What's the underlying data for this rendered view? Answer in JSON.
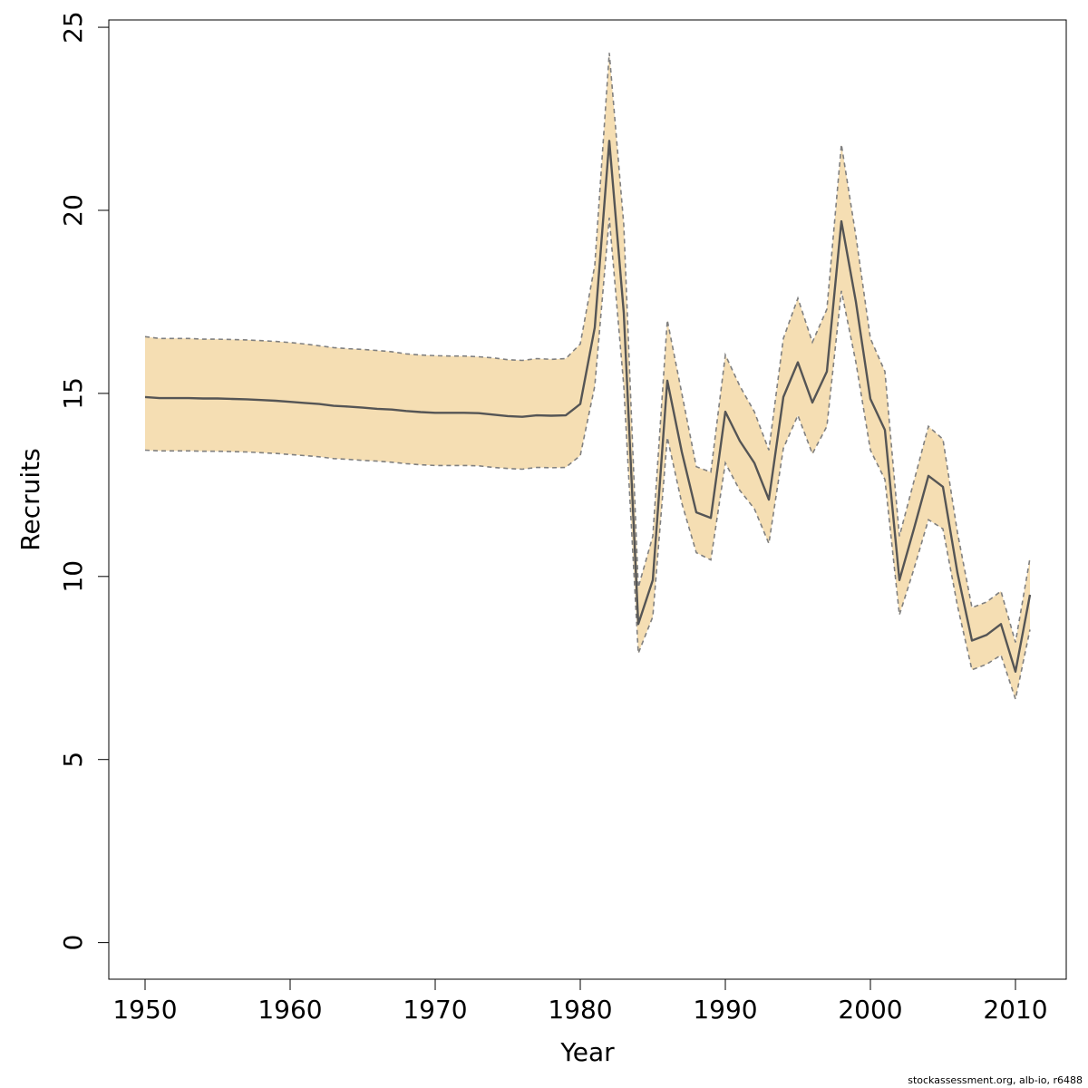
{
  "chart_data": {
    "type": "line",
    "title": "",
    "xlabel": "Year",
    "ylabel": "Recruits",
    "xlim": [
      1947.5,
      2013.5
    ],
    "ylim": [
      -1,
      25.2
    ],
    "x_ticks": [
      1950,
      1960,
      1970,
      1980,
      1990,
      2000,
      2010
    ],
    "y_ticks": [
      0,
      5,
      10,
      15,
      20,
      25
    ],
    "grid": false,
    "legend": "none",
    "colors": {
      "band": "#f5deb3",
      "line": "#555555",
      "bounds": "#808080"
    },
    "x": [
      1950,
      1951,
      1952,
      1953,
      1954,
      1955,
      1956,
      1957,
      1958,
      1959,
      1960,
      1961,
      1962,
      1963,
      1964,
      1965,
      1966,
      1967,
      1968,
      1969,
      1970,
      1971,
      1972,
      1973,
      1974,
      1975,
      1976,
      1977,
      1978,
      1979,
      1980,
      1981,
      1982,
      1983,
      1984,
      1985,
      1986,
      1987,
      1988,
      1989,
      1990,
      1991,
      1992,
      1993,
      1994,
      1995,
      1996,
      1997,
      1998,
      1999,
      2000,
      2001,
      2002,
      2003,
      2004,
      2005,
      2006,
      2007,
      2008,
      2009,
      2010,
      2011
    ],
    "series": [
      {
        "role": "estimate",
        "values": [
          14.9,
          14.87,
          14.87,
          14.87,
          14.86,
          14.86,
          14.85,
          14.84,
          14.82,
          14.8,
          14.77,
          14.74,
          14.71,
          14.66,
          14.64,
          14.61,
          14.58,
          14.56,
          14.52,
          14.49,
          14.47,
          14.47,
          14.47,
          14.46,
          14.42,
          14.38,
          14.36,
          14.4,
          14.39,
          14.4,
          14.71,
          16.8,
          21.9,
          17.2,
          8.7,
          9.9,
          15.35,
          13.4,
          11.75,
          11.6,
          14.5,
          13.7,
          13.1,
          12.1,
          14.9,
          15.85,
          14.75,
          15.6,
          19.7,
          17.5,
          14.85,
          14.0,
          9.9,
          11.3,
          12.75,
          12.45,
          10.1,
          8.25,
          8.4,
          8.7,
          7.4,
          9.5
        ]
      },
      {
        "role": "upper",
        "values": [
          16.55,
          16.5,
          16.5,
          16.5,
          16.48,
          16.48,
          16.47,
          16.46,
          16.44,
          16.42,
          16.39,
          16.35,
          16.3,
          16.25,
          16.22,
          16.2,
          16.17,
          16.14,
          16.08,
          16.05,
          16.03,
          16.02,
          16.02,
          16.0,
          15.97,
          15.92,
          15.9,
          15.95,
          15.93,
          15.95,
          16.35,
          18.5,
          24.3,
          19.6,
          9.7,
          11.1,
          17.0,
          15.0,
          13.0,
          12.85,
          16.05,
          15.2,
          14.5,
          13.45,
          16.5,
          17.6,
          16.4,
          17.3,
          21.8,
          19.3,
          16.5,
          15.6,
          11.1,
          12.6,
          14.1,
          13.75,
          11.2,
          9.15,
          9.3,
          9.6,
          8.2,
          10.5
        ]
      },
      {
        "role": "lower",
        "values": [
          13.45,
          13.43,
          13.43,
          13.43,
          13.42,
          13.42,
          13.41,
          13.4,
          13.38,
          13.36,
          13.33,
          13.3,
          13.27,
          13.22,
          13.2,
          13.17,
          13.15,
          13.12,
          13.08,
          13.05,
          13.03,
          13.03,
          13.03,
          13.02,
          12.98,
          12.95,
          12.93,
          12.98,
          12.97,
          12.98,
          13.3,
          15.2,
          19.8,
          15.2,
          7.9,
          8.9,
          13.8,
          12.0,
          10.65,
          10.45,
          13.1,
          12.35,
          11.85,
          10.9,
          13.5,
          14.4,
          13.35,
          14.1,
          17.8,
          15.85,
          13.45,
          12.65,
          8.95,
          10.2,
          11.55,
          11.3,
          9.2,
          7.45,
          7.6,
          7.85,
          6.65,
          8.55
        ]
      }
    ]
  },
  "footer": {
    "source_note": "stockassessment.org, alb-io, r6488"
  }
}
